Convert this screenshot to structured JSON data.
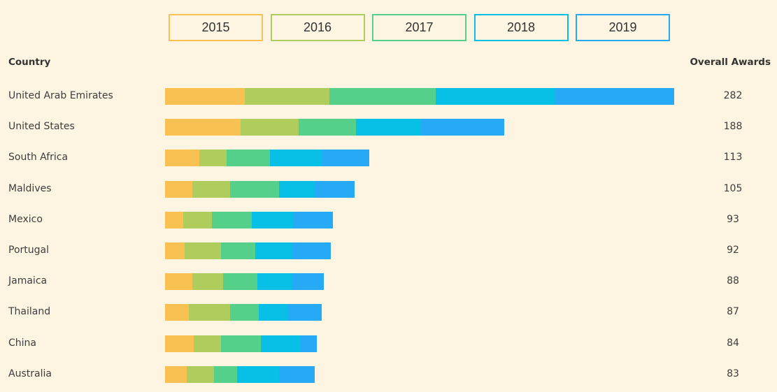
{
  "legend": [
    "2015",
    "2016",
    "2017",
    "2018",
    "2019"
  ],
  "colors": [
    "#f9c152",
    "#aecd5c",
    "#55d08b",
    "#08bfe6",
    "#27aaf5"
  ],
  "headers": {
    "country": "Country",
    "total": "Overall Awards"
  },
  "chart_data": {
    "type": "bar",
    "orientation": "horizontal",
    "stacked": true,
    "categories": [
      "United Arab Emirates",
      "United States",
      "South Africa",
      "Maldives",
      "Mexico",
      "Portugal",
      "Jamaica",
      "Thailand",
      "China",
      "Australia"
    ],
    "totals": [
      "282",
      "188",
      "113",
      "105",
      "93",
      "92",
      "88",
      "87",
      "84",
      "83"
    ],
    "series": [
      {
        "name": "2015",
        "values": [
          44,
          42,
          19,
          15,
          10,
          11,
          15,
          13,
          16,
          12
        ]
      },
      {
        "name": "2016",
        "values": [
          47,
          32,
          15,
          21,
          16,
          20,
          17,
          23,
          15,
          15
        ]
      },
      {
        "name": "2017",
        "values": [
          59,
          32,
          24,
          27,
          22,
          19,
          19,
          16,
          22,
          13
        ]
      },
      {
        "name": "2018",
        "values": [
          66,
          36,
          29,
          20,
          23,
          20,
          19,
          16,
          22,
          23
        ]
      },
      {
        "name": "2019",
        "values": [
          66,
          46,
          26,
          22,
          22,
          22,
          18,
          19,
          9,
          20
        ]
      }
    ]
  }
}
